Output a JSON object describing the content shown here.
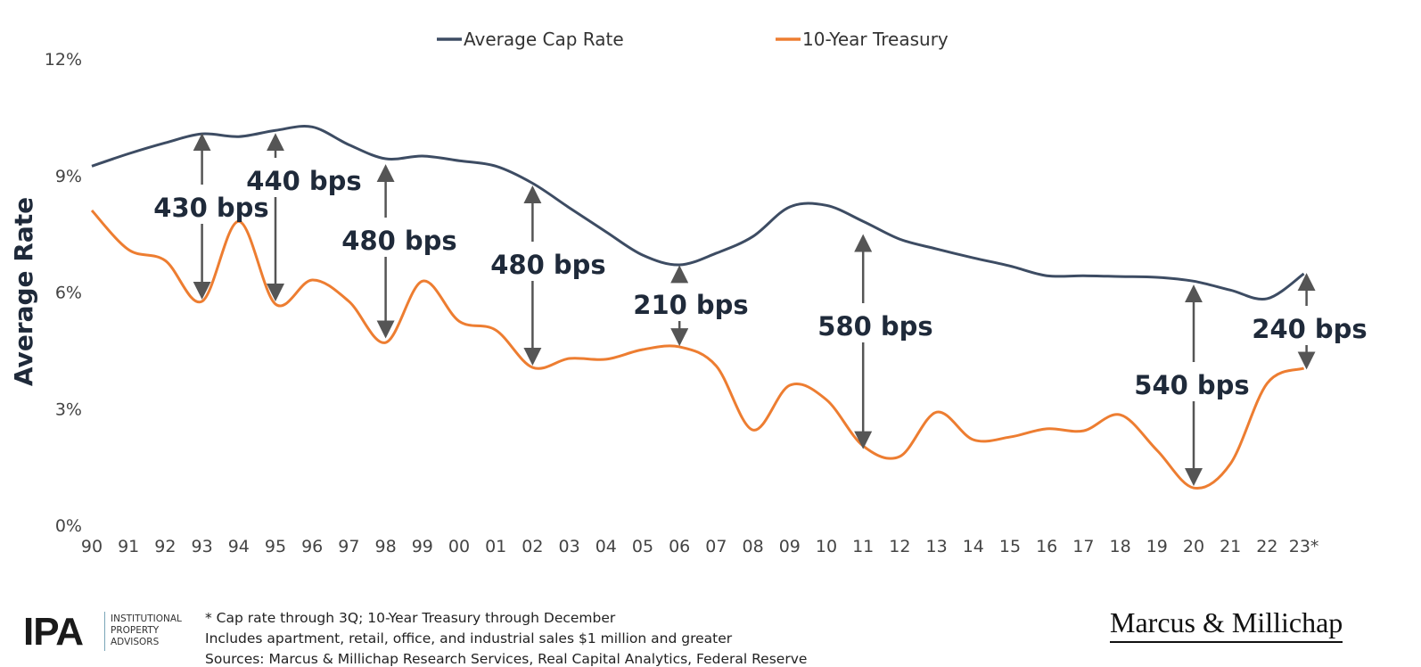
{
  "chart_data": {
    "type": "line",
    "title": "",
    "ylabel": "Average Rate",
    "xlabel": "",
    "ylim": [
      0,
      12
    ],
    "y_ticks": [
      "0%",
      "3%",
      "6%",
      "9%",
      "12%"
    ],
    "y_tick_values": [
      0,
      3,
      6,
      9,
      12
    ],
    "grid": false,
    "legend_position": "top-center",
    "categories": [
      "90",
      "91",
      "92",
      "93",
      "94",
      "95",
      "96",
      "97",
      "98",
      "99",
      "00",
      "01",
      "02",
      "03",
      "04",
      "05",
      "06",
      "07",
      "08",
      "09",
      "10",
      "11",
      "12",
      "13",
      "14",
      "15",
      "16",
      "17",
      "18",
      "19",
      "20",
      "21",
      "22",
      "23*"
    ],
    "series": [
      {
        "name": "Average Cap Rate",
        "color": "#3d4c63",
        "values": [
          9.24,
          9.56,
          9.84,
          10.07,
          10.0,
          10.16,
          10.25,
          9.79,
          9.43,
          9.5,
          9.38,
          9.24,
          8.8,
          8.17,
          7.55,
          6.95,
          6.7,
          7.0,
          7.43,
          8.19,
          8.23,
          7.82,
          7.36,
          7.11,
          6.88,
          6.67,
          6.42,
          6.42,
          6.4,
          6.38,
          6.28,
          6.05,
          5.83,
          6.47
        ]
      },
      {
        "name": "10-Year Treasury",
        "color": "#ed7d31",
        "values": [
          8.1,
          7.09,
          6.81,
          5.76,
          7.82,
          5.69,
          6.31,
          5.76,
          4.7,
          6.28,
          5.25,
          5.02,
          4.06,
          4.29,
          4.27,
          4.52,
          4.59,
          4.1,
          2.45,
          3.6,
          3.23,
          2.04,
          1.77,
          2.91,
          2.2,
          2.27,
          2.48,
          2.43,
          2.84,
          1.93,
          0.96,
          1.58,
          3.65,
          4.04
        ]
      }
    ],
    "annotations": [
      {
        "label": "430 bps",
        "category": "93",
        "from": 10.0,
        "to": 5.9
      },
      {
        "label": "440 bps",
        "category": "95",
        "from": 10.0,
        "to": 5.85
      },
      {
        "label": "480 bps",
        "category": "98",
        "from": 9.2,
        "to": 4.9
      },
      {
        "label": "480 bps",
        "category": "02",
        "from": 8.65,
        "to": 4.2
      },
      {
        "label": "210 bps",
        "category": "06",
        "from": 6.6,
        "to": 4.7
      },
      {
        "label": "580 bps",
        "category": "11",
        "from": 7.4,
        "to": 2.05
      },
      {
        "label": "540 bps",
        "category": "20",
        "from": 6.1,
        "to": 1.1
      },
      {
        "label": "240 bps",
        "category": "23*",
        "from": 6.4,
        "to": 4.1
      }
    ]
  },
  "footer": {
    "ipa_logo": "IPA",
    "ipa_sub": [
      "INSTITUTIONAL",
      "PROPERTY",
      "ADVISORS"
    ],
    "notes": [
      "* Cap rate through 3Q; 10-Year Treasury through December",
      "Includes apartment, retail, office, and industrial sales $1 million and greater",
      "Sources: Marcus & Millichap Research Services, Real Capital Analytics, Federal Reserve"
    ],
    "brand_logo": "Marcus & Millichap"
  }
}
